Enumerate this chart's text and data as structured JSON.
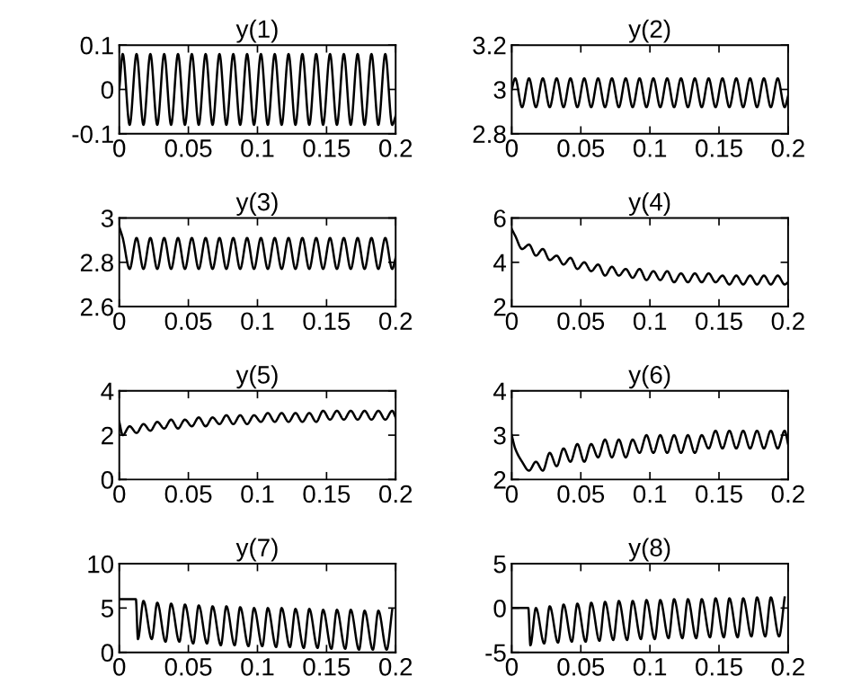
{
  "chart_data": [
    {
      "type": "line",
      "title": "y(1)",
      "x": [
        0,
        0.0025,
        0.0075,
        0.0125,
        0.0175,
        0.0225,
        0.0275,
        0.0325,
        0.0375,
        0.0425,
        0.0475,
        0.0525,
        0.0575,
        0.0625,
        0.0675,
        0.0725,
        0.0775,
        0.0825,
        0.0875,
        0.0925,
        0.0975,
        0.1025,
        0.1075,
        0.1125,
        0.1175,
        0.1225,
        0.1275,
        0.1325,
        0.1375,
        0.1425,
        0.1475,
        0.1525,
        0.1575,
        0.1625,
        0.1675,
        0.1725,
        0.1775,
        0.1825,
        0.1875,
        0.1925,
        0.1975,
        0.2
      ],
      "series": [
        {
          "color": "#000000",
          "values": [
            0,
            0.08,
            -0.08,
            0.08,
            -0.08,
            0.08,
            -0.08,
            0.08,
            -0.08,
            0.08,
            -0.08,
            0.08,
            -0.08,
            0.08,
            -0.08,
            0.08,
            -0.08,
            0.08,
            -0.08,
            0.08,
            -0.08,
            0.08,
            -0.08,
            0.08,
            -0.08,
            0.08,
            -0.08,
            0.08,
            -0.08,
            0.08,
            -0.08,
            0.08,
            -0.08,
            0.08,
            -0.08,
            0.08,
            -0.08,
            0.08,
            -0.08,
            0.08,
            -0.08,
            -0.06
          ]
        }
      ],
      "xlim": [
        0,
        0.2
      ],
      "ylim": [
        -0.1,
        0.1
      ],
      "xticks": [
        0,
        0.05,
        0.1,
        0.15,
        0.2
      ],
      "yticks": [
        -0.1,
        0,
        0.1
      ]
    },
    {
      "type": "line",
      "title": "y(2)",
      "x": [
        0,
        0.0025,
        0.0075,
        0.0125,
        0.0175,
        0.0225,
        0.0275,
        0.0325,
        0.0375,
        0.0425,
        0.0475,
        0.0525,
        0.0575,
        0.0625,
        0.0675,
        0.0725,
        0.0775,
        0.0825,
        0.0875,
        0.0925,
        0.0975,
        0.1025,
        0.1075,
        0.1125,
        0.1175,
        0.1225,
        0.1275,
        0.1325,
        0.1375,
        0.1425,
        0.1475,
        0.1525,
        0.1575,
        0.1625,
        0.1675,
        0.1725,
        0.1775,
        0.1825,
        0.1875,
        0.1925,
        0.1975,
        0.2
      ],
      "series": [
        {
          "color": "#000000",
          "values": [
            3.0,
            3.05,
            2.92,
            3.05,
            2.92,
            3.05,
            2.92,
            3.05,
            2.92,
            3.05,
            2.92,
            3.05,
            2.92,
            3.05,
            2.92,
            3.05,
            2.92,
            3.05,
            2.92,
            3.05,
            2.92,
            3.05,
            2.92,
            3.05,
            2.92,
            3.05,
            2.92,
            3.05,
            2.92,
            3.05,
            2.92,
            3.05,
            2.92,
            3.05,
            2.92,
            3.05,
            2.92,
            3.05,
            2.92,
            3.05,
            2.92,
            2.97
          ]
        }
      ],
      "xlim": [
        0,
        0.2
      ],
      "ylim": [
        2.8,
        3.2
      ],
      "xticks": [
        0,
        0.05,
        0.1,
        0.15,
        0.2
      ],
      "yticks": [
        2.8,
        3,
        3.2
      ]
    },
    {
      "type": "line",
      "title": "y(3)",
      "x": [
        0,
        0.0025,
        0.0075,
        0.0125,
        0.0175,
        0.0225,
        0.0275,
        0.0325,
        0.0375,
        0.0425,
        0.0475,
        0.0525,
        0.0575,
        0.0625,
        0.0675,
        0.0725,
        0.0775,
        0.0825,
        0.0875,
        0.0925,
        0.0975,
        0.1025,
        0.1075,
        0.1125,
        0.1175,
        0.1225,
        0.1275,
        0.1325,
        0.1375,
        0.1425,
        0.1475,
        0.1525,
        0.1575,
        0.1625,
        0.1675,
        0.1725,
        0.1775,
        0.1825,
        0.1875,
        0.1925,
        0.1975,
        0.2
      ],
      "series": [
        {
          "color": "#000000",
          "values": [
            2.96,
            2.91,
            2.77,
            2.91,
            2.77,
            2.91,
            2.77,
            2.91,
            2.77,
            2.91,
            2.77,
            2.91,
            2.77,
            2.91,
            2.77,
            2.91,
            2.77,
            2.91,
            2.77,
            2.91,
            2.77,
            2.91,
            2.77,
            2.91,
            2.77,
            2.91,
            2.77,
            2.91,
            2.77,
            2.91,
            2.77,
            2.91,
            2.77,
            2.91,
            2.77,
            2.91,
            2.77,
            2.91,
            2.77,
            2.91,
            2.77,
            2.82
          ]
        }
      ],
      "xlim": [
        0,
        0.2
      ],
      "ylim": [
        2.6,
        3
      ],
      "xticks": [
        0,
        0.05,
        0.1,
        0.15,
        0.2
      ],
      "yticks": [
        2.6,
        2.8,
        3
      ]
    },
    {
      "type": "line",
      "title": "y(4)",
      "x": [
        0,
        0.0025,
        0.0075,
        0.0125,
        0.0175,
        0.0225,
        0.0275,
        0.0325,
        0.0375,
        0.0425,
        0.0475,
        0.0525,
        0.0575,
        0.0625,
        0.0675,
        0.0725,
        0.0775,
        0.0825,
        0.0875,
        0.0925,
        0.0975,
        0.1025,
        0.1075,
        0.1125,
        0.1175,
        0.1225,
        0.1275,
        0.1325,
        0.1375,
        0.1425,
        0.1475,
        0.1525,
        0.1575,
        0.1625,
        0.1675,
        0.1725,
        0.1775,
        0.1825,
        0.1875,
        0.1925,
        0.1975,
        0.2
      ],
      "series": [
        {
          "color": "#000000",
          "values": [
            5.5,
            5.2,
            4.6,
            4.8,
            4.3,
            4.6,
            4.1,
            4.3,
            3.9,
            4.2,
            3.7,
            4.0,
            3.6,
            3.9,
            3.4,
            3.8,
            3.4,
            3.7,
            3.3,
            3.7,
            3.2,
            3.6,
            3.2,
            3.6,
            3.1,
            3.5,
            3.1,
            3.5,
            3.1,
            3.5,
            3.1,
            3.4,
            3.0,
            3.4,
            3.0,
            3.4,
            3.0,
            3.4,
            3.0,
            3.4,
            3.0,
            3.1
          ]
        }
      ],
      "xlim": [
        0,
        0.2
      ],
      "ylim": [
        2,
        6
      ],
      "xticks": [
        0,
        0.05,
        0.1,
        0.15,
        0.2
      ],
      "yticks": [
        2,
        4,
        6
      ]
    },
    {
      "type": "line",
      "title": "y(5)",
      "x": [
        0,
        0.0025,
        0.0075,
        0.0125,
        0.0175,
        0.0225,
        0.0275,
        0.0325,
        0.0375,
        0.0425,
        0.0475,
        0.0525,
        0.0575,
        0.0625,
        0.0675,
        0.0725,
        0.0775,
        0.0825,
        0.0875,
        0.0925,
        0.0975,
        0.1025,
        0.1075,
        0.1125,
        0.1175,
        0.1225,
        0.1275,
        0.1325,
        0.1375,
        0.1425,
        0.1475,
        0.1525,
        0.1575,
        0.1625,
        0.1675,
        0.1725,
        0.1775,
        0.1825,
        0.1875,
        0.1925,
        0.1975,
        0.2
      ],
      "series": [
        {
          "color": "#000000",
          "values": [
            2.6,
            2.0,
            2.4,
            2.1,
            2.5,
            2.2,
            2.6,
            2.3,
            2.7,
            2.3,
            2.7,
            2.4,
            2.8,
            2.4,
            2.8,
            2.5,
            2.9,
            2.5,
            2.9,
            2.5,
            2.9,
            2.6,
            3.0,
            2.6,
            3.0,
            2.6,
            3.0,
            2.6,
            3.0,
            2.6,
            3.1,
            2.7,
            3.1,
            2.7,
            3.1,
            2.7,
            3.1,
            2.7,
            3.1,
            2.7,
            3.1,
            2.8
          ]
        }
      ],
      "xlim": [
        0,
        0.2
      ],
      "ylim": [
        0,
        4
      ],
      "xticks": [
        0,
        0.05,
        0.1,
        0.15,
        0.2
      ],
      "yticks": [
        0,
        2,
        4
      ]
    },
    {
      "type": "line",
      "title": "y(6)",
      "x": [
        0,
        0.0025,
        0.0075,
        0.0125,
        0.0175,
        0.0225,
        0.0275,
        0.0325,
        0.0375,
        0.0425,
        0.0475,
        0.0525,
        0.0575,
        0.0625,
        0.0675,
        0.0725,
        0.0775,
        0.0825,
        0.0875,
        0.0925,
        0.0975,
        0.1025,
        0.1075,
        0.1125,
        0.1175,
        0.1225,
        0.1275,
        0.1325,
        0.1375,
        0.1425,
        0.1475,
        0.1525,
        0.1575,
        0.1625,
        0.1675,
        0.1725,
        0.1775,
        0.1825,
        0.1875,
        0.1925,
        0.1975,
        0.2
      ],
      "series": [
        {
          "color": "#000000",
          "values": [
            3.0,
            2.7,
            2.4,
            2.2,
            2.4,
            2.2,
            2.6,
            2.3,
            2.7,
            2.4,
            2.8,
            2.4,
            2.8,
            2.5,
            2.9,
            2.5,
            2.9,
            2.5,
            2.9,
            2.6,
            3.0,
            2.6,
            3.0,
            2.6,
            3.0,
            2.6,
            3.0,
            2.6,
            3.0,
            2.7,
            3.1,
            2.7,
            3.1,
            2.7,
            3.1,
            2.7,
            3.1,
            2.7,
            3.1,
            2.7,
            3.1,
            2.8
          ]
        }
      ],
      "xlim": [
        0,
        0.2
      ],
      "ylim": [
        2,
        4
      ],
      "xticks": [
        0,
        0.05,
        0.1,
        0.15,
        0.2
      ],
      "yticks": [
        2,
        3,
        4
      ]
    },
    {
      "type": "line",
      "title": "y(7)",
      "x": [
        0,
        0.012,
        0.0135,
        0.0175,
        0.0235,
        0.0275,
        0.0335,
        0.0375,
        0.0435,
        0.0475,
        0.0535,
        0.0575,
        0.0635,
        0.0675,
        0.0735,
        0.0775,
        0.0835,
        0.0875,
        0.0935,
        0.0975,
        0.1035,
        0.1075,
        0.1135,
        0.1175,
        0.1235,
        0.1275,
        0.1335,
        0.1375,
        0.1435,
        0.1475,
        0.1535,
        0.1575,
        0.1635,
        0.1675,
        0.1735,
        0.1775,
        0.1835,
        0.1875,
        0.1935,
        0.1975
      ],
      "series": [
        {
          "color": "#000000",
          "values": [
            6,
            6,
            1.5,
            5.8,
            1.5,
            5.6,
            1.2,
            5.5,
            1.2,
            5.4,
            1.0,
            5.3,
            1.0,
            5.2,
            0.8,
            5.2,
            0.8,
            5.1,
            0.7,
            5.0,
            0.7,
            5.0,
            0.6,
            5.0,
            0.6,
            4.9,
            0.5,
            4.9,
            0.5,
            4.8,
            0.4,
            4.8,
            0.4,
            4.8,
            0.3,
            4.7,
            0.3,
            4.7,
            0.3,
            4.8
          ]
        }
      ],
      "xlim": [
        0,
        0.2
      ],
      "ylim": [
        0,
        10
      ],
      "xticks": [
        0,
        0.05,
        0.1,
        0.15,
        0.2
      ],
      "yticks": [
        0,
        5,
        10
      ]
    },
    {
      "type": "line",
      "title": "y(8)",
      "x": [
        0,
        0.012,
        0.0135,
        0.0175,
        0.0235,
        0.0275,
        0.0335,
        0.0375,
        0.0435,
        0.0475,
        0.0535,
        0.0575,
        0.0635,
        0.0675,
        0.0735,
        0.0775,
        0.0835,
        0.0875,
        0.0935,
        0.0975,
        0.1035,
        0.1075,
        0.1135,
        0.1175,
        0.1235,
        0.1275,
        0.1335,
        0.1375,
        0.1435,
        0.1475,
        0.1535,
        0.1575,
        0.1635,
        0.1675,
        0.1735,
        0.1775,
        0.1835,
        0.1875,
        0.1935,
        0.1975
      ],
      "series": [
        {
          "color": "#000000",
          "values": [
            0,
            0,
            -4.2,
            0.0,
            -4.0,
            0.2,
            -3.9,
            0.4,
            -3.8,
            0.5,
            -3.8,
            0.6,
            -3.7,
            0.7,
            -3.6,
            0.8,
            -3.6,
            0.8,
            -3.5,
            0.9,
            -3.5,
            0.9,
            -3.4,
            1.0,
            -3.4,
            1.0,
            -3.4,
            1.0,
            -3.3,
            1.1,
            -3.3,
            1.1,
            -3.3,
            1.1,
            -3.2,
            1.2,
            -3.2,
            1.2,
            -3.2,
            1.2
          ]
        }
      ],
      "xlim": [
        0,
        0.2
      ],
      "ylim": [
        -5,
        5
      ],
      "xticks": [
        0,
        0.05,
        0.1,
        0.15,
        0.2
      ],
      "yticks": [
        -5,
        0,
        5
      ]
    }
  ]
}
